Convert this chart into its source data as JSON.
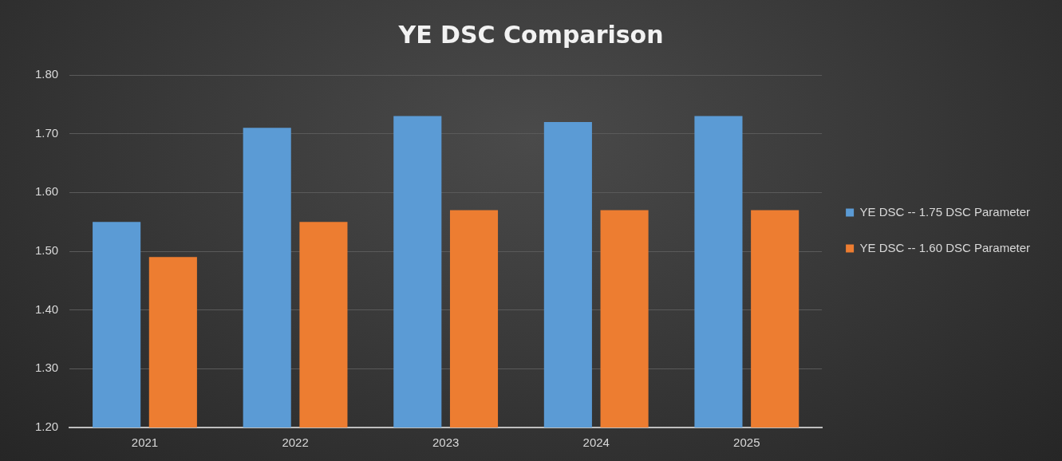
{
  "chart_data": {
    "type": "bar",
    "title": "YE DSC Comparison",
    "categories": [
      "2021",
      "2022",
      "2023",
      "2024",
      "2025"
    ],
    "series": [
      {
        "name": "YE DSC -- 1.75 DSC Parameter",
        "color": "#5b9bd5",
        "values": [
          1.55,
          1.71,
          1.73,
          1.72,
          1.73
        ]
      },
      {
        "name": "YE DSC -- 1.60 DSC Parameter",
        "color": "#ed7d31",
        "values": [
          1.49,
          1.55,
          1.57,
          1.57,
          1.57
        ]
      }
    ],
    "ylim": [
      1.2,
      1.8
    ],
    "yticks": [
      {
        "value": 1.2,
        "label": "1.20"
      },
      {
        "value": 1.3,
        "label": "1.30"
      },
      {
        "value": 1.4,
        "label": "1.40"
      },
      {
        "value": 1.5,
        "label": "1.50"
      },
      {
        "value": 1.6,
        "label": "1.60"
      },
      {
        "value": 1.7,
        "label": "1.70"
      },
      {
        "value": 1.8,
        "label": "1.80"
      }
    ],
    "grid": "y",
    "legend": "right"
  }
}
